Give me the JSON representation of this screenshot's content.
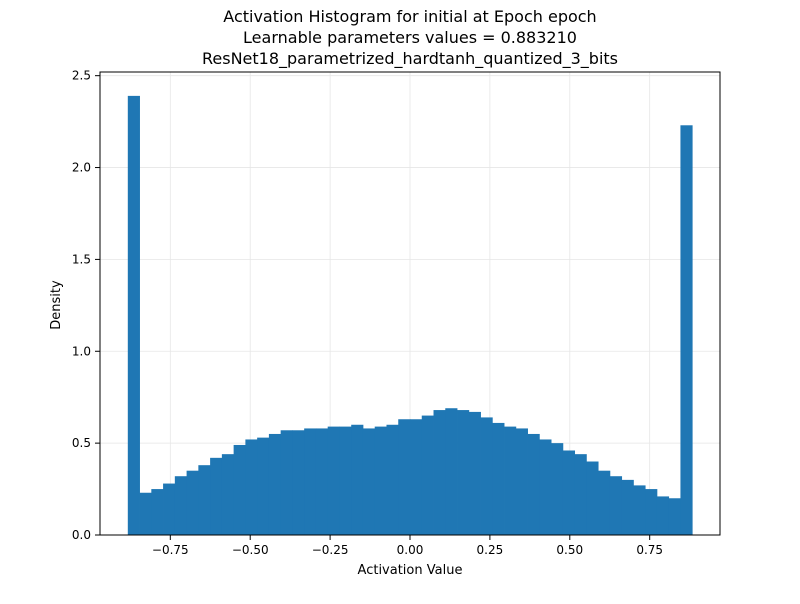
{
  "chart_data": {
    "type": "bar",
    "title": [
      "Activation Histogram for initial at Epoch epoch",
      "Learnable parameters values = 0.883210",
      "ResNet18_parametrized_hardtanh_quantized_3_bits"
    ],
    "xlabel": "Activation Value",
    "ylabel": "Density",
    "xlim": [
      -0.97,
      0.97
    ],
    "ylim": [
      0,
      2.52
    ],
    "xticks": [
      -0.75,
      -0.5,
      -0.25,
      0.0,
      0.25,
      0.5,
      0.75
    ],
    "xtick_labels": [
      "−0.75",
      "−0.50",
      "−0.25",
      "0.00",
      "0.25",
      "0.50",
      "0.75"
    ],
    "yticks": [
      0.0,
      0.5,
      1.0,
      1.5,
      2.0,
      2.5
    ],
    "ytick_labels": [
      "0.0",
      "0.5",
      "1.0",
      "1.5",
      "2.0",
      "2.5"
    ],
    "grid": true,
    "bin_range": [
      -0.883,
      0.883
    ],
    "values": [
      2.39,
      0.23,
      0.25,
      0.28,
      0.32,
      0.35,
      0.38,
      0.42,
      0.44,
      0.49,
      0.52,
      0.53,
      0.55,
      0.57,
      0.57,
      0.58,
      0.58,
      0.59,
      0.59,
      0.6,
      0.58,
      0.59,
      0.6,
      0.63,
      0.63,
      0.65,
      0.68,
      0.69,
      0.68,
      0.67,
      0.64,
      0.61,
      0.59,
      0.58,
      0.55,
      0.52,
      0.5,
      0.46,
      0.44,
      0.4,
      0.35,
      0.32,
      0.3,
      0.27,
      0.25,
      0.21,
      0.2,
      2.23
    ],
    "bar_color": "#1f77b4",
    "grid_color": "#e6e6e6"
  }
}
